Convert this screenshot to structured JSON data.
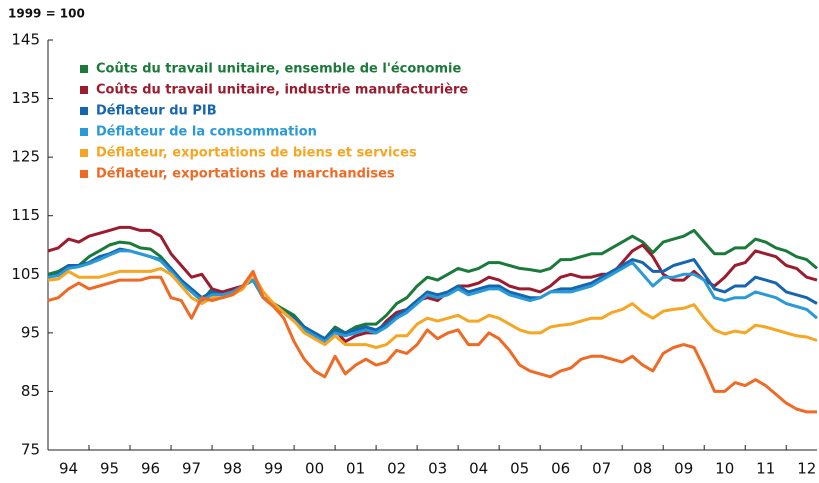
{
  "chart_data": {
    "type": "line",
    "y_axis_label": "1999 = 100",
    "categories": [
      null,
      null,
      "94",
      null,
      null,
      null,
      "95",
      null,
      null,
      null,
      "96",
      null,
      null,
      null,
      "97",
      null,
      null,
      null,
      "98",
      null,
      null,
      null,
      "99",
      null,
      null,
      null,
      "00",
      null,
      null,
      null,
      "01",
      null,
      null,
      null,
      "02",
      null,
      null,
      null,
      "03",
      null,
      null,
      null,
      "04",
      null,
      null,
      null,
      "05",
      null,
      null,
      null,
      "06",
      null,
      null,
      null,
      "07",
      null,
      null,
      null,
      "08",
      null,
      null,
      null,
      "09",
      null,
      null,
      null,
      "10",
      null,
      null,
      null,
      "11",
      null,
      null,
      null,
      "12",
      null
    ],
    "ylim": [
      75,
      145
    ],
    "yticks": [
      75,
      85,
      95,
      105,
      115,
      125,
      135,
      145
    ],
    "grid": false,
    "series": [
      {
        "name": "Coûts du travail unitaire, ensemble de l'économie",
        "color": "#1a7a3a",
        "values": [
          105,
          105.5,
          106.5,
          106.5,
          108,
          109,
          110,
          110.5,
          110.3,
          109.5,
          109.3,
          108,
          106,
          104,
          102,
          100.5,
          102.5,
          101.5,
          102,
          103,
          104,
          101,
          100,
          99,
          98,
          96,
          95,
          94,
          96,
          95,
          96,
          96.5,
          96.5,
          98,
          100,
          101,
          103,
          104.5,
          104,
          105,
          106,
          105.5,
          106,
          107,
          107,
          106.5,
          106,
          105.8,
          105.5,
          106,
          107.5,
          107.5,
          108,
          108.5,
          108.5,
          109.5,
          110.5,
          111.5,
          110.5,
          108.7,
          110.5,
          111,
          111.5,
          112.5,
          110.5,
          108.5,
          108.5,
          109.5,
          109.5,
          111,
          110.5,
          109.5,
          109,
          108,
          107.5,
          106
        ]
      },
      {
        "name": "Coûts du travail unitaire, industrie manufacturière",
        "color": "#9b1c2e",
        "values": [
          109,
          109.5,
          111,
          110.5,
          111.5,
          112,
          112.5,
          113,
          113,
          112.5,
          112.5,
          111.5,
          108.5,
          106.5,
          104.5,
          105,
          102.5,
          102,
          102.5,
          103,
          104,
          101,
          99.5,
          98.5,
          97,
          95.5,
          94.5,
          93.5,
          95.5,
          93.5,
          94.5,
          95,
          95,
          97,
          98.5,
          99,
          100.5,
          101,
          100.5,
          102,
          103,
          103,
          103.5,
          104.5,
          104,
          103,
          102.5,
          102.5,
          102,
          103,
          104.5,
          105,
          104.5,
          104.5,
          105,
          105,
          107,
          109,
          110,
          108,
          105,
          104,
          104,
          105.5,
          104,
          103,
          104.5,
          106.5,
          107,
          109,
          108.5,
          108,
          106.5,
          106,
          104.5,
          104
        ]
      },
      {
        "name": "Déflateur du PIB",
        "color": "#1565b0",
        "values": [
          104.5,
          105,
          106.5,
          106.5,
          107,
          108,
          108.5,
          109.3,
          109,
          108.5,
          108,
          107.5,
          106,
          104,
          102.5,
          101,
          102,
          101.5,
          102,
          103,
          104,
          101,
          100,
          98.5,
          97.5,
          96,
          95,
          94,
          95.5,
          95,
          95.5,
          96,
          95.5,
          96.5,
          98,
          99,
          100.5,
          102,
          101.5,
          102,
          103,
          102,
          102.5,
          103,
          103,
          102,
          101.5,
          101,
          101,
          102,
          102.5,
          102.5,
          103,
          103.5,
          104.5,
          105.5,
          106.5,
          107.5,
          107,
          105.5,
          105.5,
          106.5,
          107,
          107.5,
          105,
          102.5,
          102,
          103,
          103,
          104.5,
          104,
          103.5,
          102,
          101.5,
          101,
          100
        ]
      },
      {
        "name": "Déflateur de la consommation",
        "color": "#2a9ad6",
        "values": [
          104.5,
          104.8,
          106,
          106.3,
          106.8,
          107.5,
          108.3,
          109,
          109,
          108.5,
          108,
          107.3,
          105.5,
          103.5,
          102,
          100.5,
          101.5,
          101.5,
          102,
          103,
          104,
          101,
          100,
          98.5,
          97,
          95.5,
          94.5,
          93.5,
          95,
          94.5,
          95,
          95.5,
          95,
          96,
          97.5,
          98.5,
          100,
          101.5,
          101,
          101.5,
          102.5,
          101.5,
          102,
          102.5,
          102.5,
          101.5,
          101,
          100.5,
          101,
          102,
          102,
          102,
          102.5,
          103,
          104,
          105,
          106,
          107,
          105,
          103,
          104.5,
          104.5,
          105,
          105,
          104,
          101,
          100.5,
          101,
          101,
          102,
          101.5,
          101,
          100,
          99.5,
          99,
          97.5
        ]
      },
      {
        "name": "Déflateur, exportations de biens et services",
        "color": "#f5a623",
        "values": [
          104,
          104.2,
          105.5,
          104.5,
          104.5,
          104.5,
          105,
          105.5,
          105.5,
          105.5,
          105.5,
          106,
          105,
          103,
          101,
          100,
          101,
          101,
          101.5,
          102.5,
          105,
          102,
          100,
          98.5,
          97,
          95,
          94,
          93,
          94.5,
          93,
          93,
          93,
          92.5,
          93,
          94.5,
          94.5,
          96.5,
          97.5,
          97,
          97.5,
          98,
          97,
          97,
          98,
          97.5,
          96.5,
          95.5,
          95,
          95,
          96,
          96.3,
          96.5,
          97,
          97.5,
          97.5,
          98.5,
          99,
          100,
          98.5,
          97.5,
          98.7,
          99,
          99.2,
          99.8,
          97.5,
          95.5,
          94.8,
          95.3,
          95,
          96.3,
          96,
          95.5,
          95,
          94.5,
          94.3,
          93.7
        ]
      },
      {
        "name": "Déflateur, exportations de marchandises",
        "color": "#ef6a24",
        "values": [
          100.5,
          101,
          102.5,
          103.5,
          102.5,
          103,
          103.5,
          104,
          104,
          104,
          104.5,
          104.5,
          101,
          100.5,
          97.5,
          101,
          100.5,
          101,
          101.5,
          103,
          105.5,
          101,
          99.5,
          97.5,
          93.5,
          90.5,
          88.5,
          87.5,
          91,
          88,
          89.5,
          90.5,
          89.5,
          90,
          92,
          91.5,
          93,
          95.5,
          94,
          95,
          95.5,
          93,
          93,
          95,
          94,
          92,
          89.5,
          88.5,
          88,
          87.5,
          88.5,
          89,
          90.5,
          91,
          91,
          90.5,
          90,
          91,
          89.5,
          88.5,
          91.5,
          92.5,
          93,
          92.5,
          89,
          85,
          85,
          86.5,
          86,
          87,
          86,
          84.5,
          83,
          82,
          81.5,
          81.5
        ]
      }
    ]
  }
}
